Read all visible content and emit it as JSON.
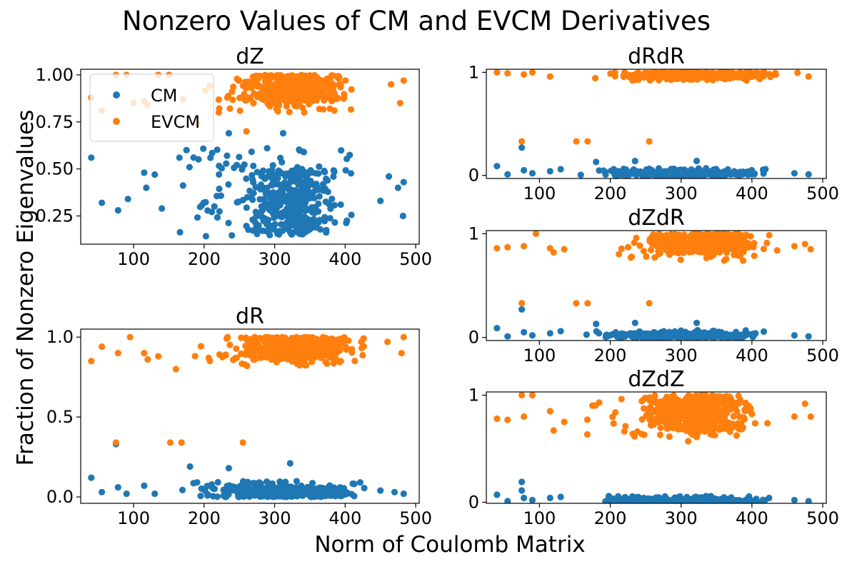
{
  "figure": {
    "suptitle": "Nonzero Values of CM and EVCM Derivatives",
    "supxlabel": "Norm of Coulomb Matrix",
    "supylabel": "Fraction of Nonzero Eigenvalues"
  },
  "colors": {
    "CM": "#1f77b4",
    "EVCM": "#ff7f0e"
  },
  "chart_data": [
    {
      "type": "scatter",
      "title": "dZ",
      "xlim": [
        25,
        505
      ],
      "ylim": [
        0.1,
        1.03
      ],
      "xticks": [
        100,
        200,
        300,
        400,
        500
      ],
      "yticks": [
        0.25,
        0.5,
        0.75,
        1.0
      ],
      "ytick_labels": [
        "0.25",
        "0.50",
        "0.75",
        "1.00"
      ],
      "legend": {
        "position": "top-left",
        "entries": [
          "CM",
          "EVCM"
        ]
      },
      "series": [
        {
          "name": "CM",
          "cluster": {
            "x_range": [
              150,
              420
            ],
            "x_core": [
              260,
              390
            ],
            "y_range": [
              0.14,
              0.62
            ],
            "y_core": [
              0.15,
              0.5
            ]
          },
          "outliers": [
            [
              40,
              0.56
            ],
            [
              55,
              0.32
            ],
            [
              78,
              0.28
            ],
            [
              92,
              0.34
            ],
            [
              115,
              0.48
            ],
            [
              118,
              0.4
            ],
            [
              130,
              0.47
            ],
            [
              140,
              0.29
            ],
            [
              165,
              0.56
            ],
            [
              175,
              0.6
            ],
            [
              235,
              0.69
            ],
            [
              312,
              0.69
            ],
            [
              450,
              0.33
            ],
            [
              462,
              0.46
            ],
            [
              475,
              0.4
            ],
            [
              482,
              0.25
            ],
            [
              483,
              0.43
            ]
          ]
        },
        {
          "name": "EVCM",
          "cluster": {
            "x_range": [
              190,
              430
            ],
            "x_core": [
              250,
              410
            ],
            "y_range": [
              0.8,
              1.0
            ],
            "y_core": [
              0.86,
              1.0
            ]
          },
          "outliers": [
            [
              40,
              0.88
            ],
            [
              55,
              0.81
            ],
            [
              75,
              1.0
            ],
            [
              90,
              1.0
            ],
            [
              100,
              0.85
            ],
            [
              115,
              0.86
            ],
            [
              120,
              0.84
            ],
            [
              135,
              1.0
            ],
            [
              150,
              1.0
            ],
            [
              170,
              0.87
            ],
            [
              190,
              0.74
            ],
            [
              260,
              0.7
            ],
            [
              465,
              0.95
            ],
            [
              478,
              0.85
            ],
            [
              483,
              0.97
            ]
          ]
        }
      ]
    },
    {
      "type": "scatter",
      "title": "dR",
      "xlim": [
        25,
        505
      ],
      "ylim": [
        -0.04,
        1.05
      ],
      "xticks": [
        100,
        200,
        300,
        400,
        500
      ],
      "yticks": [
        0.0,
        0.5,
        1.0
      ],
      "ytick_labels": [
        "0.0",
        "0.5",
        "1.0"
      ],
      "series": [
        {
          "name": "CM",
          "cluster": {
            "x_range": [
              150,
              440
            ],
            "x_core": [
              225,
              410
            ],
            "y_range": [
              0.0,
              0.1
            ],
            "y_core": [
              0.0,
              0.06
            ]
          },
          "outliers": [
            [
              40,
              0.12
            ],
            [
              55,
              0.03
            ],
            [
              75,
              0.33
            ],
            [
              78,
              0.06
            ],
            [
              90,
              0.02
            ],
            [
              115,
              0.07
            ],
            [
              130,
              0.02
            ],
            [
              180,
              0.19
            ],
            [
              235,
              0.18
            ],
            [
              322,
              0.21
            ],
            [
              450,
              0.04
            ],
            [
              470,
              0.03
            ],
            [
              483,
              0.02
            ]
          ]
        },
        {
          "name": "EVCM",
          "cluster": {
            "x_range": [
              180,
              440
            ],
            "x_core": [
              250,
              410
            ],
            "y_range": [
              0.82,
              1.0
            ],
            "y_core": [
              0.86,
              1.0
            ]
          },
          "outliers": [
            [
              40,
              0.85
            ],
            [
              55,
              0.94
            ],
            [
              75,
              0.34
            ],
            [
              78,
              0.9
            ],
            [
              95,
              1.0
            ],
            [
              115,
              0.9
            ],
            [
              120,
              0.86
            ],
            [
              135,
              0.88
            ],
            [
              152,
              0.34
            ],
            [
              168,
              0.34
            ],
            [
              255,
              0.34
            ],
            [
              160,
              0.8
            ],
            [
              460,
              0.97
            ],
            [
              480,
              0.9
            ],
            [
              483,
              1.0
            ]
          ]
        }
      ]
    },
    {
      "type": "scatter",
      "title": "dRdR",
      "xlim": [
        25,
        505
      ],
      "ylim": [
        -0.03,
        1.03
      ],
      "xticks": [
        100,
        200,
        300,
        400,
        500
      ],
      "yticks": [
        0,
        1
      ],
      "ytick_labels": [
        "0",
        "1"
      ],
      "series": [
        {
          "name": "CM",
          "cluster": {
            "x_range": [
              150,
              440
            ],
            "x_core": [
              190,
              410
            ],
            "y_range": [
              0.0,
              0.07
            ],
            "y_core": [
              0.0,
              0.04
            ]
          },
          "outliers": [
            [
              40,
              0.09
            ],
            [
              55,
              0.01
            ],
            [
              75,
              0.27
            ],
            [
              78,
              0.05
            ],
            [
              90,
              0.02
            ],
            [
              115,
              0.04
            ],
            [
              130,
              0.06
            ],
            [
              180,
              0.13
            ],
            [
              235,
              0.14
            ],
            [
              322,
              0.14
            ],
            [
              460,
              0.02
            ],
            [
              480,
              0.01
            ]
          ]
        },
        {
          "name": "EVCM",
          "cluster": {
            "x_range": [
              150,
              490
            ],
            "x_core": [
              200,
              450
            ],
            "y_range": [
              0.92,
              1.0
            ],
            "y_core": [
              0.95,
              1.0
            ]
          },
          "outliers": [
            [
              40,
              1.0
            ],
            [
              55,
              0.99
            ],
            [
              75,
              0.33
            ],
            [
              78,
              0.98
            ],
            [
              90,
              1.0
            ],
            [
              115,
              0.96
            ],
            [
              152,
              0.33
            ],
            [
              168,
              0.33
            ],
            [
              255,
              0.33
            ],
            [
              480,
              0.96
            ]
          ]
        }
      ]
    },
    {
      "type": "scatter",
      "title": "dZdR",
      "xlim": [
        25,
        505
      ],
      "ylim": [
        -0.03,
        1.03
      ],
      "xticks": [
        100,
        200,
        300,
        400,
        500
      ],
      "yticks": [
        0,
        1
      ],
      "ytick_labels": [
        "0",
        "1"
      ],
      "series": [
        {
          "name": "CM",
          "cluster": {
            "x_range": [
              150,
              440
            ],
            "x_core": [
              190,
              410
            ],
            "y_range": [
              0.0,
              0.07
            ],
            "y_core": [
              0.0,
              0.04
            ]
          },
          "outliers": [
            [
              40,
              0.09
            ],
            [
              55,
              0.01
            ],
            [
              75,
              0.27
            ],
            [
              78,
              0.05
            ],
            [
              90,
              0.02
            ],
            [
              115,
              0.04
            ],
            [
              130,
              0.06
            ],
            [
              180,
              0.13
            ],
            [
              235,
              0.14
            ],
            [
              322,
              0.14
            ],
            [
              460,
              0.02
            ],
            [
              480,
              0.01
            ]
          ]
        },
        {
          "name": "EVCM",
          "cluster": {
            "x_range": [
              180,
              440
            ],
            "x_core": [
              250,
              410
            ],
            "y_range": [
              0.74,
              1.0
            ],
            "y_core": [
              0.82,
              1.0
            ]
          },
          "outliers": [
            [
              40,
              0.86
            ],
            [
              55,
              0.87
            ],
            [
              75,
              0.33
            ],
            [
              78,
              0.88
            ],
            [
              95,
              1.0
            ],
            [
              115,
              0.86
            ],
            [
              120,
              0.82
            ],
            [
              135,
              0.85
            ],
            [
              152,
              0.33
            ],
            [
              168,
              0.33
            ],
            [
              255,
              0.33
            ],
            [
              460,
              0.88
            ],
            [
              475,
              0.9
            ],
            [
              483,
              0.85
            ]
          ]
        }
      ]
    },
    {
      "type": "scatter",
      "title": "dZdZ",
      "xlim": [
        25,
        505
      ],
      "ylim": [
        -0.01,
        1.03
      ],
      "xticks": [
        100,
        200,
        300,
        400,
        500
      ],
      "yticks": [
        0,
        1
      ],
      "ytick_labels": [
        "0",
        "1"
      ],
      "series": [
        {
          "name": "CM",
          "cluster": {
            "x_range": [
              150,
              440
            ],
            "x_core": [
              190,
              410
            ],
            "y_range": [
              0.0,
              0.06
            ],
            "y_core": [
              0.0,
              0.03
            ]
          },
          "outliers": [
            [
              40,
              0.07
            ],
            [
              55,
              0.01
            ],
            [
              75,
              0.19
            ],
            [
              75,
              0.11
            ],
            [
              78,
              0.04
            ],
            [
              90,
              0.02
            ],
            [
              115,
              0.04
            ],
            [
              130,
              0.05
            ],
            [
              460,
              0.02
            ],
            [
              480,
              0.01
            ]
          ]
        },
        {
          "name": "EVCM",
          "cluster": {
            "x_range": [
              150,
              440
            ],
            "x_core": [
              240,
              410
            ],
            "y_range": [
              0.6,
              1.0
            ],
            "y_core": [
              0.68,
              1.0
            ]
          },
          "outliers": [
            [
              40,
              0.78
            ],
            [
              55,
              0.77
            ],
            [
              75,
              1.0
            ],
            [
              78,
              0.8
            ],
            [
              90,
              1.0
            ],
            [
              115,
              0.85
            ],
            [
              120,
              0.67
            ],
            [
              135,
              0.75
            ],
            [
              310,
              0.57
            ],
            [
              460,
              0.8
            ],
            [
              475,
              0.92
            ],
            [
              483,
              0.8
            ]
          ]
        }
      ]
    }
  ]
}
